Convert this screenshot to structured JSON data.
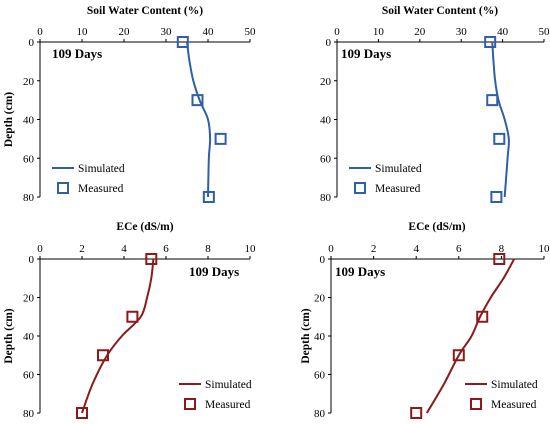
{
  "colors": {
    "blue": "#2E5FA8",
    "red": "#8B1A1A",
    "axis": "#000000"
  },
  "chart_data": [
    {
      "type": "line",
      "xlabel": "Soil Water Content (%)",
      "ylabel": "Depth (cm)",
      "annotation": "109 Days",
      "xlim": [
        0,
        50
      ],
      "ylim": [
        0,
        80
      ],
      "xticks": [
        "0",
        "10",
        "20",
        "30",
        "40",
        "50"
      ],
      "yticks": [
        "0",
        "20",
        "40",
        "60",
        "80"
      ],
      "series": [
        {
          "name": "Simulated",
          "kind": "line",
          "color": "#2E5FA8",
          "x": [
            35,
            35.6,
            36.5,
            38,
            40,
            40.5,
            40.2,
            40
          ],
          "y": [
            0,
            10,
            20,
            30,
            40,
            50,
            60,
            80
          ]
        },
        {
          "name": "Measured",
          "kind": "marker",
          "color": "#2E5FA8",
          "x": [
            34,
            37.5,
            43,
            40.2
          ],
          "y": [
            0,
            30,
            50,
            80
          ]
        }
      ]
    },
    {
      "type": "line",
      "xlabel": "Soil Water Content (%)",
      "ylabel": "",
      "annotation": "109 Days",
      "xlim": [
        0,
        50
      ],
      "ylim": [
        0,
        80
      ],
      "xticks": [
        "0",
        "10",
        "20",
        "30",
        "40",
        "50"
      ],
      "yticks": [
        "0",
        "20",
        "40",
        "60",
        "80"
      ],
      "series": [
        {
          "name": "Simulated",
          "kind": "line",
          "color": "#2E5FA8",
          "x": [
            37.5,
            37.8,
            38.2,
            39,
            40.5,
            41.5,
            41.2,
            40.5
          ],
          "y": [
            0,
            10,
            20,
            30,
            40,
            50,
            60,
            80
          ]
        },
        {
          "name": "Measured",
          "kind": "marker",
          "color": "#2E5FA8",
          "x": [
            37,
            37.5,
            39.2,
            38.5
          ],
          "y": [
            0,
            30,
            50,
            80
          ]
        }
      ]
    },
    {
      "type": "line",
      "xlabel": "ECe (dS/m)",
      "ylabel": "Depth (cm)",
      "annotation": "109 Days",
      "xlim": [
        0,
        10
      ],
      "ylim": [
        0,
        80
      ],
      "xticks": [
        "0",
        "2",
        "4",
        "6",
        "8",
        "10"
      ],
      "yticks": [
        "0",
        "20",
        "40",
        "60",
        "80"
      ],
      "series": [
        {
          "name": "Simulated",
          "kind": "line",
          "color": "#8B1A1A",
          "x": [
            5.4,
            5.3,
            5.1,
            4.8,
            3.9,
            3.2,
            2.5,
            2.0
          ],
          "y": [
            0,
            10,
            20,
            30,
            40,
            50,
            65,
            80
          ]
        },
        {
          "name": "Measured",
          "kind": "marker",
          "color": "#8B1A1A",
          "x": [
            5.3,
            4.4,
            3.0,
            2.0
          ],
          "y": [
            0,
            30,
            50,
            80
          ]
        }
      ]
    },
    {
      "type": "line",
      "xlabel": "ECe (dS/m)",
      "ylabel": "Depth (cm)",
      "annotation": "109 Days",
      "xlim": [
        0,
        10
      ],
      "ylim": [
        0,
        80
      ],
      "xticks": [
        "0",
        "2",
        "4",
        "6",
        "8",
        "10"
      ],
      "yticks": [
        "0",
        "20",
        "40",
        "60",
        "80"
      ],
      "series": [
        {
          "name": "Simulated",
          "kind": "line",
          "color": "#8B1A1A",
          "x": [
            8.6,
            8.1,
            7.5,
            7.0,
            6.6,
            6.0,
            5.3,
            4.5
          ],
          "y": [
            0,
            10,
            20,
            30,
            40,
            50,
            65,
            80
          ]
        },
        {
          "name": "Measured",
          "kind": "marker",
          "color": "#8B1A1A",
          "x": [
            7.9,
            7.1,
            6.0,
            4.0
          ],
          "y": [
            0,
            30,
            50,
            80
          ]
        }
      ]
    }
  ]
}
